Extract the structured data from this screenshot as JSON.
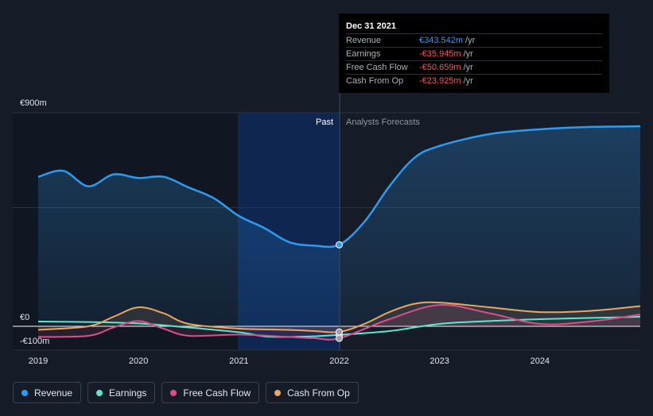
{
  "tooltip": {
    "date": "Dec 31 2021",
    "rows": [
      {
        "label": "Revenue",
        "value": "€343.542m",
        "unit": "/yr",
        "color": "#2e9bf0"
      },
      {
        "label": "Earnings",
        "value": "-€35.945m",
        "unit": "/yr",
        "color": "#ff4d4d"
      },
      {
        "label": "Free Cash Flow",
        "value": "-€50.659m",
        "unit": "/yr",
        "color": "#ff4d4d"
      },
      {
        "label": "Cash From Op",
        "value": "-€23.925m",
        "unit": "/yr",
        "color": "#ff4d4d"
      }
    ]
  },
  "legend": [
    {
      "label": "Revenue",
      "color": "#2e9bf0"
    },
    {
      "label": "Earnings",
      "color": "#5ee6d0"
    },
    {
      "label": "Free Cash Flow",
      "color": "#d94f8c"
    },
    {
      "label": "Cash From Op",
      "color": "#e8a860"
    }
  ],
  "chart_data": {
    "type": "line",
    "y_tick_labels": {
      "top": "€900m",
      "zero": "€0",
      "bottom": "-€100m"
    },
    "ylim": [
      -100,
      900
    ],
    "xlim": [
      2019,
      2025.0
    ],
    "x_ticks": [
      2019,
      2020,
      2021,
      2022,
      2023,
      2024
    ],
    "x_tick_labels": [
      "2019",
      "2020",
      "2021",
      "2022",
      "2023",
      "2024"
    ],
    "past_label": "Past",
    "forecast_label": "Analysts Forecasts",
    "divider_x": 2022.0,
    "highlight_range": [
      2021.0,
      2022.0
    ],
    "grid": true,
    "series": [
      {
        "name": "Revenue",
        "color": "#2e9bf0",
        "area": true,
        "points": [
          [
            2019.0,
            630
          ],
          [
            2019.25,
            655
          ],
          [
            2019.5,
            590
          ],
          [
            2019.75,
            640
          ],
          [
            2020.0,
            625
          ],
          [
            2020.25,
            630
          ],
          [
            2020.5,
            585
          ],
          [
            2020.75,
            540
          ],
          [
            2021.0,
            465
          ],
          [
            2021.25,
            415
          ],
          [
            2021.5,
            355
          ],
          [
            2021.75,
            340
          ],
          [
            2022.0,
            343.5
          ],
          [
            2022.25,
            440
          ],
          [
            2022.5,
            590
          ],
          [
            2022.75,
            710
          ],
          [
            2023.0,
            760
          ],
          [
            2023.5,
            810
          ],
          [
            2024.0,
            830
          ],
          [
            2024.5,
            840
          ],
          [
            2025.0,
            843
          ]
        ]
      },
      {
        "name": "Earnings",
        "color": "#5ee6d0",
        "points": [
          [
            2019.0,
            20
          ],
          [
            2019.5,
            18
          ],
          [
            2020.0,
            12
          ],
          [
            2020.5,
            -5
          ],
          [
            2021.0,
            -25
          ],
          [
            2021.25,
            -42
          ],
          [
            2021.5,
            -45
          ],
          [
            2021.75,
            -42
          ],
          [
            2022.0,
            -36
          ],
          [
            2022.5,
            -20
          ],
          [
            2023.0,
            10
          ],
          [
            2023.5,
            22
          ],
          [
            2024.0,
            30
          ],
          [
            2024.5,
            35
          ],
          [
            2025.0,
            40
          ]
        ]
      },
      {
        "name": "Free Cash Flow",
        "color": "#d94f8c",
        "area": true,
        "points": [
          [
            2019.0,
            -45
          ],
          [
            2019.5,
            -40
          ],
          [
            2019.75,
            -5
          ],
          [
            2020.0,
            22
          ],
          [
            2020.25,
            -10
          ],
          [
            2020.5,
            -40
          ],
          [
            2021.0,
            -35
          ],
          [
            2021.5,
            -45
          ],
          [
            2021.75,
            -50
          ],
          [
            2022.0,
            -50.7
          ],
          [
            2022.5,
            30
          ],
          [
            2023.0,
            90
          ],
          [
            2023.5,
            55
          ],
          [
            2024.0,
            10
          ],
          [
            2024.5,
            20
          ],
          [
            2025.0,
            50
          ]
        ]
      },
      {
        "name": "Cash From Op",
        "color": "#e8a860",
        "area": true,
        "points": [
          [
            2019.0,
            -15
          ],
          [
            2019.5,
            0
          ],
          [
            2019.75,
            40
          ],
          [
            2020.0,
            80
          ],
          [
            2020.25,
            55
          ],
          [
            2020.5,
            10
          ],
          [
            2021.0,
            -10
          ],
          [
            2021.5,
            -15
          ],
          [
            2021.75,
            -20
          ],
          [
            2022.0,
            -23.9
          ],
          [
            2022.25,
            10
          ],
          [
            2022.5,
            60
          ],
          [
            2022.75,
            95
          ],
          [
            2023.0,
            100
          ],
          [
            2023.5,
            80
          ],
          [
            2024.0,
            60
          ],
          [
            2024.5,
            65
          ],
          [
            2025.0,
            85
          ]
        ]
      }
    ]
  }
}
